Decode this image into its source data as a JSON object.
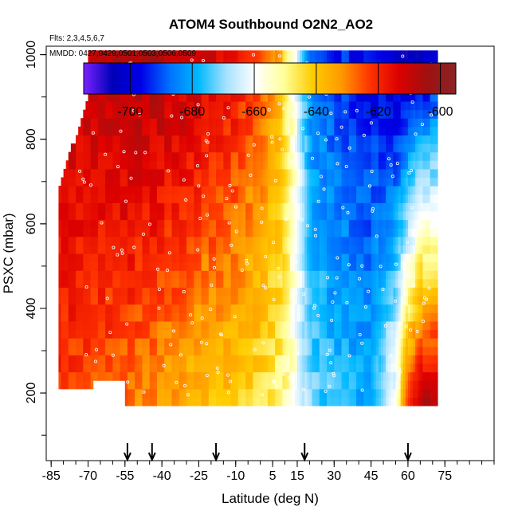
{
  "chart_data": {
    "type": "heatmap",
    "title": "ATOM4 Southbound O2N2_AO2",
    "flights_note": "Flts: 2,3,4,5,6,7",
    "date_note": "MMDD: 0427,0429,0501,0503,0506,0509",
    "xlabel": "Latitude (deg N)",
    "ylabel": "PSXC (mbar)",
    "xlim": [
      -87,
      95
    ],
    "ylim": [
      1020,
      40
    ],
    "y_reversed": true,
    "x_ticks": [
      -85,
      -70,
      -55,
      -40,
      -25,
      -10,
      5,
      15,
      30,
      45,
      60,
      75
    ],
    "y_ticks": [
      200,
      400,
      600,
      800,
      1000
    ],
    "colorbar": {
      "range": [
        -715,
        -595
      ],
      "ticks": [
        -700,
        -680,
        -660,
        -640,
        -620,
        -600
      ],
      "colors": [
        "#7a22ff",
        "#0000b8",
        "#0000e8",
        "#0070ff",
        "#00b8ff",
        "#a8e2ff",
        "#ffffff",
        "#ffff99",
        "#ffcc00",
        "#ff9900",
        "#ff3300",
        "#dd0000",
        "#a01010",
        "#8a2424"
      ]
    },
    "data_extent": {
      "lat_range": [
        -82,
        72
      ],
      "pressure_range": [
        170,
        1000
      ]
    },
    "profile": {
      "latitude": [
        -82,
        -70,
        -55,
        -40,
        -25,
        -10,
        0,
        8,
        12,
        16,
        20,
        30,
        45,
        55,
        60,
        65,
        72
      ],
      "value_at_1000mbar": [
        -610,
        -608,
        -606,
        -606,
        -610,
        -616,
        -624,
        -636,
        -650,
        -666,
        -684,
        -692,
        -698,
        -704,
        -706,
        -704,
        -702
      ],
      "value_at_200mbar": [
        -622,
        -625,
        -628,
        -632,
        -638,
        -640,
        -644,
        -648,
        -652,
        -662,
        -672,
        -676,
        -680,
        -658,
        -628,
        -612,
        -610
      ]
    },
    "sample_markers": {
      "marker": "open white circle"
    },
    "sonde_arrows_lat": [
      -54,
      -44,
      -18,
      18,
      60
    ]
  }
}
